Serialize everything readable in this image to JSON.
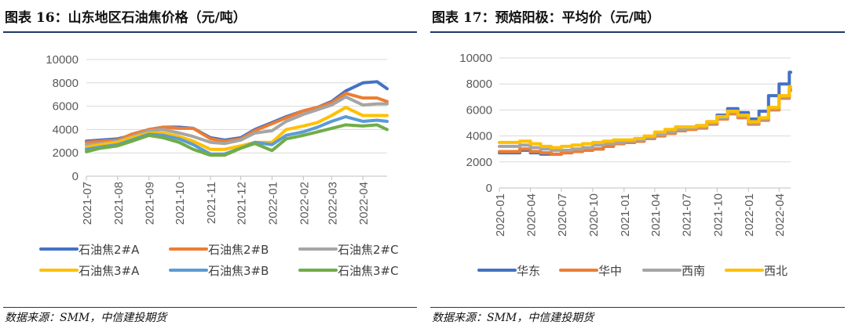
{
  "left": {
    "title": "图表 16：山东地区石油焦价格（元/吨）",
    "source": "数据来源：SMM，中信建投期货"
  },
  "right": {
    "title": "图表 17：预焙阳极：平均价（元/吨）",
    "source": "数据来源：SMM，中信建投期货"
  },
  "chart_data": [
    {
      "type": "line",
      "title": "图表 16：山东地区石油焦价格（元/吨）",
      "xlabel": "",
      "ylabel": "",
      "ylim": [
        0,
        10000
      ],
      "yticks": [
        "0",
        "2000",
        "4000",
        "6000",
        "8000",
        "10000"
      ],
      "xticks": [
        "2021-07",
        "2021-08",
        "2021-09",
        "2021-10",
        "2021-11",
        "2021-12",
        "2022-01",
        "2022-02",
        "2022-03",
        "2022-04"
      ],
      "xlim": [
        "2021-07-01",
        "2022-04-25"
      ],
      "grid": true,
      "legend": "bottom",
      "x": [
        "2021-07-01",
        "2021-07-15",
        "2021-08-01",
        "2021-08-15",
        "2021-09-01",
        "2021-09-15",
        "2021-10-01",
        "2021-10-15",
        "2021-11-01",
        "2021-11-15",
        "2021-12-01",
        "2021-12-15",
        "2022-01-01",
        "2022-01-15",
        "2022-02-01",
        "2022-02-15",
        "2022-03-01",
        "2022-03-15",
        "2022-04-01",
        "2022-04-15",
        "2022-04-25"
      ],
      "series": [
        {
          "name": "石油焦2#A",
          "color": "#4472c4",
          "values": [
            3000,
            3100,
            3200,
            3500,
            4000,
            4200,
            4200,
            4100,
            3300,
            3100,
            3300,
            4000,
            4600,
            5100,
            5600,
            5900,
            6400,
            7300,
            8000,
            8100,
            7500
          ]
        },
        {
          "name": "石油焦2#B",
          "color": "#ed7d31",
          "values": [
            2900,
            3000,
            3100,
            3600,
            4000,
            4200,
            4100,
            4100,
            3200,
            3000,
            3200,
            3900,
            4500,
            5000,
            5600,
            5900,
            6300,
            7100,
            6700,
            6700,
            6400
          ]
        },
        {
          "name": "石油焦2#C",
          "color": "#a5a5a5",
          "values": [
            2700,
            2800,
            3000,
            3400,
            3900,
            4000,
            3700,
            3400,
            2900,
            2800,
            3100,
            3700,
            3900,
            4700,
            5300,
            5700,
            6100,
            6800,
            6100,
            6200,
            6200
          ]
        },
        {
          "name": "石油焦3#A",
          "color": "#ffc000",
          "values": [
            2500,
            2700,
            2900,
            3300,
            3700,
            3700,
            3400,
            3000,
            2300,
            2300,
            2600,
            2900,
            2900,
            4000,
            4300,
            4600,
            5200,
            5900,
            5200,
            5200,
            5200
          ]
        },
        {
          "name": "石油焦3#B",
          "color": "#5b9bd5",
          "values": [
            2300,
            2500,
            2700,
            3100,
            3600,
            3500,
            3200,
            2700,
            1900,
            1900,
            2400,
            2900,
            2700,
            3500,
            3800,
            4200,
            4700,
            5100,
            4700,
            4800,
            4700
          ]
        },
        {
          "name": "石油焦3#C",
          "color": "#70ad47",
          "values": [
            2100,
            2400,
            2600,
            3000,
            3500,
            3300,
            2900,
            2300,
            1800,
            1800,
            2400,
            2800,
            2200,
            3200,
            3500,
            3800,
            4100,
            4400,
            4300,
            4400,
            4000
          ]
        }
      ]
    },
    {
      "type": "line",
      "title": "图表 17：预焙阳极：平均价（元/吨）",
      "xlabel": "",
      "ylabel": "",
      "ylim": [
        0,
        10000
      ],
      "yticks": [
        "0",
        "2000",
        "4000",
        "6000",
        "8000",
        "10000"
      ],
      "xticks": [
        "2020-01",
        "2020-04",
        "2020-07",
        "2020-10",
        "2021-01",
        "2021-04",
        "2021-07",
        "2021-10",
        "2022-01",
        "2022-04"
      ],
      "xlim": [
        "2020-01-01",
        "2022-05-05"
      ],
      "grid": true,
      "legend": "bottom",
      "step": true,
      "x": [
        "2020-01",
        "2020-02",
        "2020-03",
        "2020-04",
        "2020-05",
        "2020-06",
        "2020-07",
        "2020-08",
        "2020-09",
        "2020-10",
        "2020-11",
        "2020-12",
        "2021-01",
        "2021-02",
        "2021-03",
        "2021-04",
        "2021-05",
        "2021-06",
        "2021-07",
        "2021-08",
        "2021-09",
        "2021-10",
        "2021-11",
        "2021-12",
        "2022-01",
        "2022-02",
        "2022-03",
        "2022-04",
        "2022-05"
      ],
      "series": [
        {
          "name": "华东",
          "color": "#4472c4",
          "values": [
            2700,
            2700,
            2900,
            2700,
            2600,
            2600,
            2700,
            2800,
            2900,
            3000,
            3200,
            3400,
            3500,
            3600,
            3800,
            4100,
            4300,
            4500,
            4600,
            4800,
            5100,
            5600,
            6100,
            5800,
            5300,
            5900,
            7100,
            8000,
            8900
          ]
        },
        {
          "name": "华中",
          "color": "#ed7d31",
          "values": [
            2800,
            2800,
            3000,
            2800,
            2700,
            2600,
            2700,
            2800,
            2900,
            3000,
            3200,
            3400,
            3500,
            3600,
            3800,
            4000,
            4200,
            4400,
            4500,
            4600,
            4900,
            5300,
            5700,
            5400,
            4900,
            5200,
            6000,
            6900,
            7500
          ]
        },
        {
          "name": "西南",
          "color": "#a5a5a5",
          "values": [
            3200,
            3200,
            3300,
            3100,
            3000,
            2900,
            2900,
            3000,
            3100,
            3300,
            3400,
            3500,
            3600,
            3700,
            3900,
            4100,
            4300,
            4500,
            4600,
            4700,
            5000,
            5400,
            5800,
            5500,
            5000,
            5300,
            6100,
            7000,
            7600
          ]
        },
        {
          "name": "西北",
          "color": "#ffc000",
          "values": [
            3500,
            3500,
            3600,
            3400,
            3200,
            3100,
            3200,
            3300,
            3400,
            3500,
            3600,
            3700,
            3700,
            3800,
            4000,
            4300,
            4500,
            4700,
            4700,
            4800,
            5100,
            5500,
            5900,
            5600,
            5100,
            5400,
            6200,
            7100,
            7800
          ]
        }
      ]
    }
  ]
}
